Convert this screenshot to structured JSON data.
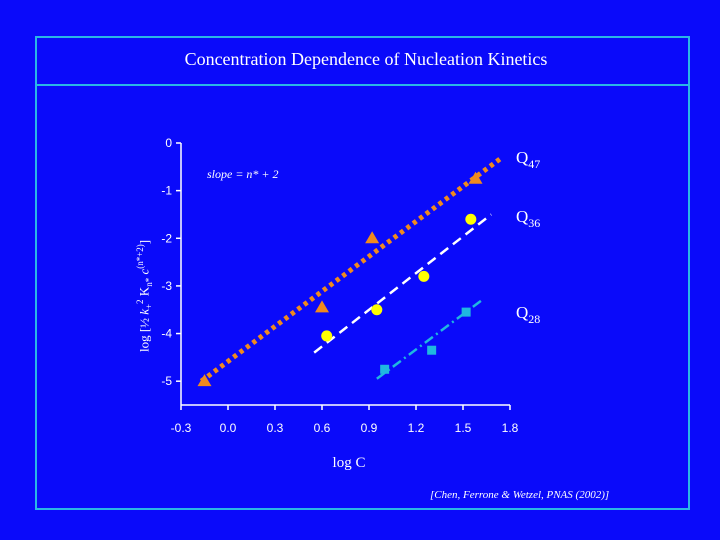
{
  "page": {
    "title": "Concentration Dependence of Nucleation Kinetics",
    "citation": "[Chen, Ferrone & Wetzel, PNAS (2002)]"
  },
  "colors": {
    "background": "#0a0afa",
    "frame": "#2ab7e6",
    "q47": "#f08a1e",
    "q36": "#ffff00",
    "q28": "#1fb8e0",
    "q47_fit": "#f08a1e"
  },
  "chart_data": {
    "type": "scatter",
    "title": "",
    "xlabel": "log C",
    "ylabel_parts": {
      "prefix": "log [",
      "half": "½",
      "k": "k",
      "k_sub": "+",
      "k_sup": "2",
      "K": "K",
      "K_sub": "n*",
      "c": "c",
      "c_sup": "(n*+2)",
      "suffix": "]"
    },
    "xlim": [
      -0.3,
      1.8
    ],
    "ylim": [
      -5.5,
      0
    ],
    "xticks": [
      "-0.3",
      "0.0",
      "0.3",
      "0.6",
      "0.9",
      "1.2",
      "1.5",
      "1.8"
    ],
    "xtick_values": [
      -0.3,
      0.0,
      0.3,
      0.6,
      0.9,
      1.2,
      1.5,
      1.8
    ],
    "yticks": [
      "0",
      "-1",
      "-2",
      "-3",
      "-4",
      "-5"
    ],
    "ytick_values": [
      0,
      -1,
      -2,
      -3,
      -4,
      -5
    ],
    "annotation": "slope = n* + 2",
    "series": [
      {
        "label": "Q",
        "sub": "47",
        "marker": "triangle",
        "points": [
          [
            -0.15,
            -5.0
          ],
          [
            0.6,
            -3.45
          ],
          [
            0.92,
            -2.0
          ],
          [
            1.58,
            -0.75
          ]
        ],
        "fit": [
          [
            -0.17,
            -5.0
          ],
          [
            1.75,
            -0.3
          ]
        ],
        "fit_style": "dotted"
      },
      {
        "label": "Q",
        "sub": "36",
        "marker": "circle",
        "points": [
          [
            0.63,
            -4.05
          ],
          [
            0.95,
            -3.5
          ],
          [
            1.25,
            -2.8
          ],
          [
            1.55,
            -1.6
          ]
        ],
        "fit": [
          [
            0.55,
            -4.4
          ],
          [
            1.68,
            -1.5
          ]
        ],
        "fit_style": "dashed"
      },
      {
        "label": "Q",
        "sub": "28",
        "marker": "square",
        "points": [
          [
            1.0,
            -4.75
          ],
          [
            1.3,
            -4.35
          ],
          [
            1.52,
            -3.55
          ]
        ],
        "fit": [
          [
            0.95,
            -4.95
          ],
          [
            1.62,
            -3.3
          ]
        ],
        "fit_style": "dashdot"
      }
    ]
  }
}
